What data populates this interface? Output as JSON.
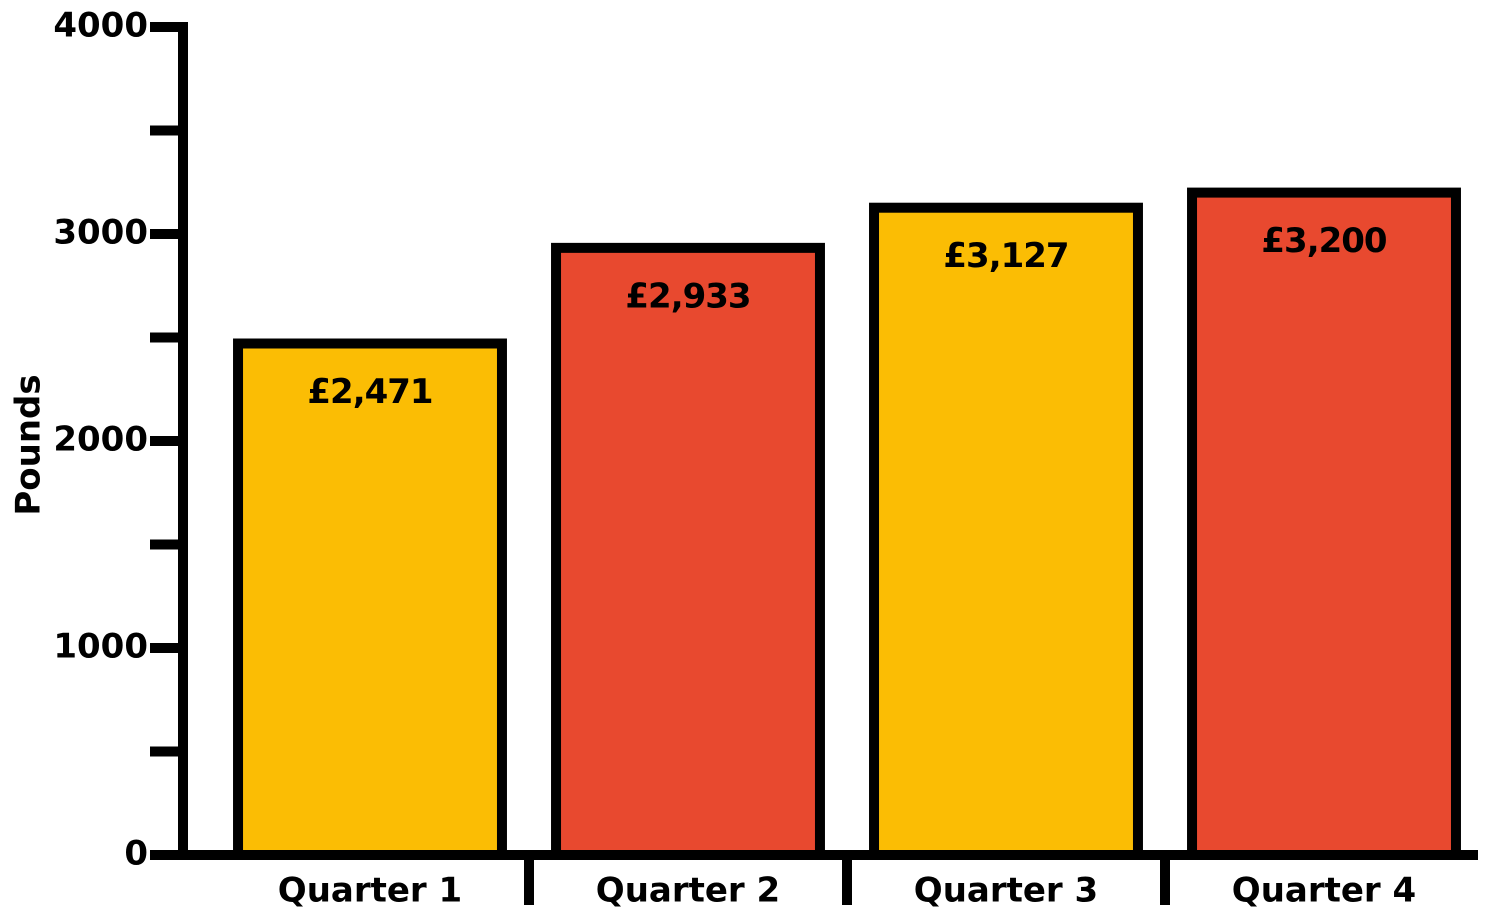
{
  "chart_data": {
    "type": "bar",
    "y_label": "Pounds",
    "categories": [
      "Quarter 1",
      "Quarter 2",
      "Quarter 3",
      "Quarter 4"
    ],
    "values": [
      2471,
      2933,
      3127,
      3200
    ],
    "value_labels": [
      "£2,471",
      "£2,933",
      "£3,127",
      "£3,200"
    ],
    "colors": [
      "#fbbd04",
      "#e8492f",
      "#fbbd04",
      "#e8492f"
    ],
    "ylim": [
      0,
      4000
    ],
    "yticks": [
      0,
      1000,
      2000,
      3000,
      4000
    ],
    "minor_yticks": [
      500,
      1500,
      2500,
      3500
    ],
    "grid": false
  }
}
